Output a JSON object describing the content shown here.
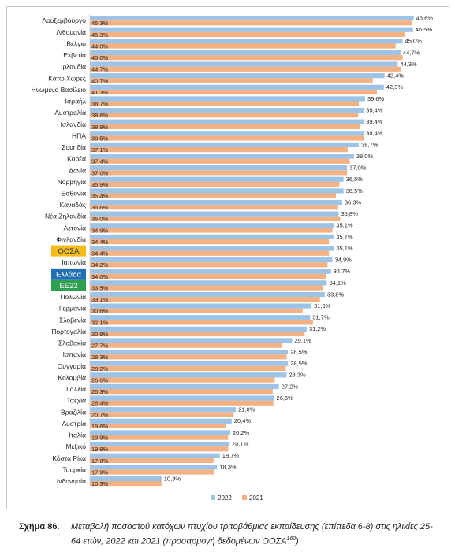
{
  "chart_data": {
    "type": "bar",
    "orientation": "horizontal",
    "xlim": [
      0,
      50
    ],
    "grid": false,
    "legend_position": "bottom-center",
    "categories": [
      "Λουξεμβούργο",
      "Λιθουανία",
      "Βέλγιο",
      "Ελβετία",
      "Ιρλανδία",
      "Κάτω Χώρες",
      "Ηνωμένο Βασίλειο",
      "Ισραήλ",
      "Αυστραλία",
      "Ισλανδία",
      "ΗΠΑ",
      "Σουηδία",
      "Κορέα",
      "Δανία",
      "Νορβηγία",
      "Εσθονία",
      "Καναδάς",
      "Νέα Ζηλανδία",
      "Λετονία",
      "Φινλανδία",
      "ΟΟΣΑ",
      "Ιαπωνία",
      "Ελλάδα",
      "ΕΕ22",
      "Πολωνία",
      "Γερμανία",
      "Σλοβενία",
      "Πορτογαλία",
      "Σλοβακία",
      "Ισπανία",
      "Ουγγαρία",
      "Κολομβία",
      "Γαλλία",
      "Τσεχία",
      "Βραζιλία",
      "Αυστρία",
      "Ιταλία",
      "Μεξικό",
      "Κόστα Ρίκα",
      "Τουρκία",
      "Ινδονησία"
    ],
    "highlight": [
      {
        "name": "ΟΟΣΑ",
        "color": "#f5bc15",
        "text_color": "#1f3864"
      },
      {
        "name": "Ελλάδα",
        "color": "#1f6fb2",
        "text_color": "#ffffff"
      },
      {
        "name": "ΕΕ22",
        "color": "#2e9e4f",
        "text_color": "#ffffff"
      }
    ],
    "series": [
      {
        "name": "2022",
        "color": "#9dc3e6",
        "values": [
          46.6,
          46.5,
          45.0,
          44.7,
          44.3,
          42.4,
          42.3,
          39.6,
          39.4,
          39.4,
          39.4,
          38.7,
          38.0,
          37.0,
          36.5,
          36.5,
          36.3,
          35.8,
          35.1,
          35.1,
          35.1,
          34.9,
          34.7,
          34.1,
          33.8,
          31.9,
          31.7,
          31.2,
          29.1,
          28.5,
          28.5,
          28.3,
          27.2,
          26.5,
          21.0,
          20.4,
          20.2,
          20.1,
          18.7,
          18.3,
          10.3
        ]
      },
      {
        "name": "2021",
        "color": "#f4b183",
        "values": [
          46.3,
          45.3,
          44.0,
          45.0,
          44.7,
          40.7,
          41.3,
          38.7,
          38.6,
          38.9,
          39.5,
          37.1,
          37.4,
          37.0,
          35.9,
          35.4,
          35.6,
          36.0,
          34.9,
          34.4,
          34.4,
          34.2,
          34.0,
          33.5,
          33.1,
          30.6,
          32.1,
          30.9,
          27.7,
          28.3,
          28.2,
          26.6,
          26.3,
          26.4,
          20.7,
          19.6,
          19.9,
          19.9,
          17.8,
          17.9,
          10.3
        ]
      }
    ]
  },
  "caption": {
    "label": "Σχήμα 86.",
    "text": "Μεταβολή ποσοστού κατόχων πτυχίου τριτοβάθμιας εκπαίδευσης (επίπεδα 6-8) στις ηλικίες 25-64 ετών, 2022 και 2021 (προσαρμογή δεδομένων ΟΟΣΑ",
    "superscript": "160",
    "suffix": ")"
  }
}
